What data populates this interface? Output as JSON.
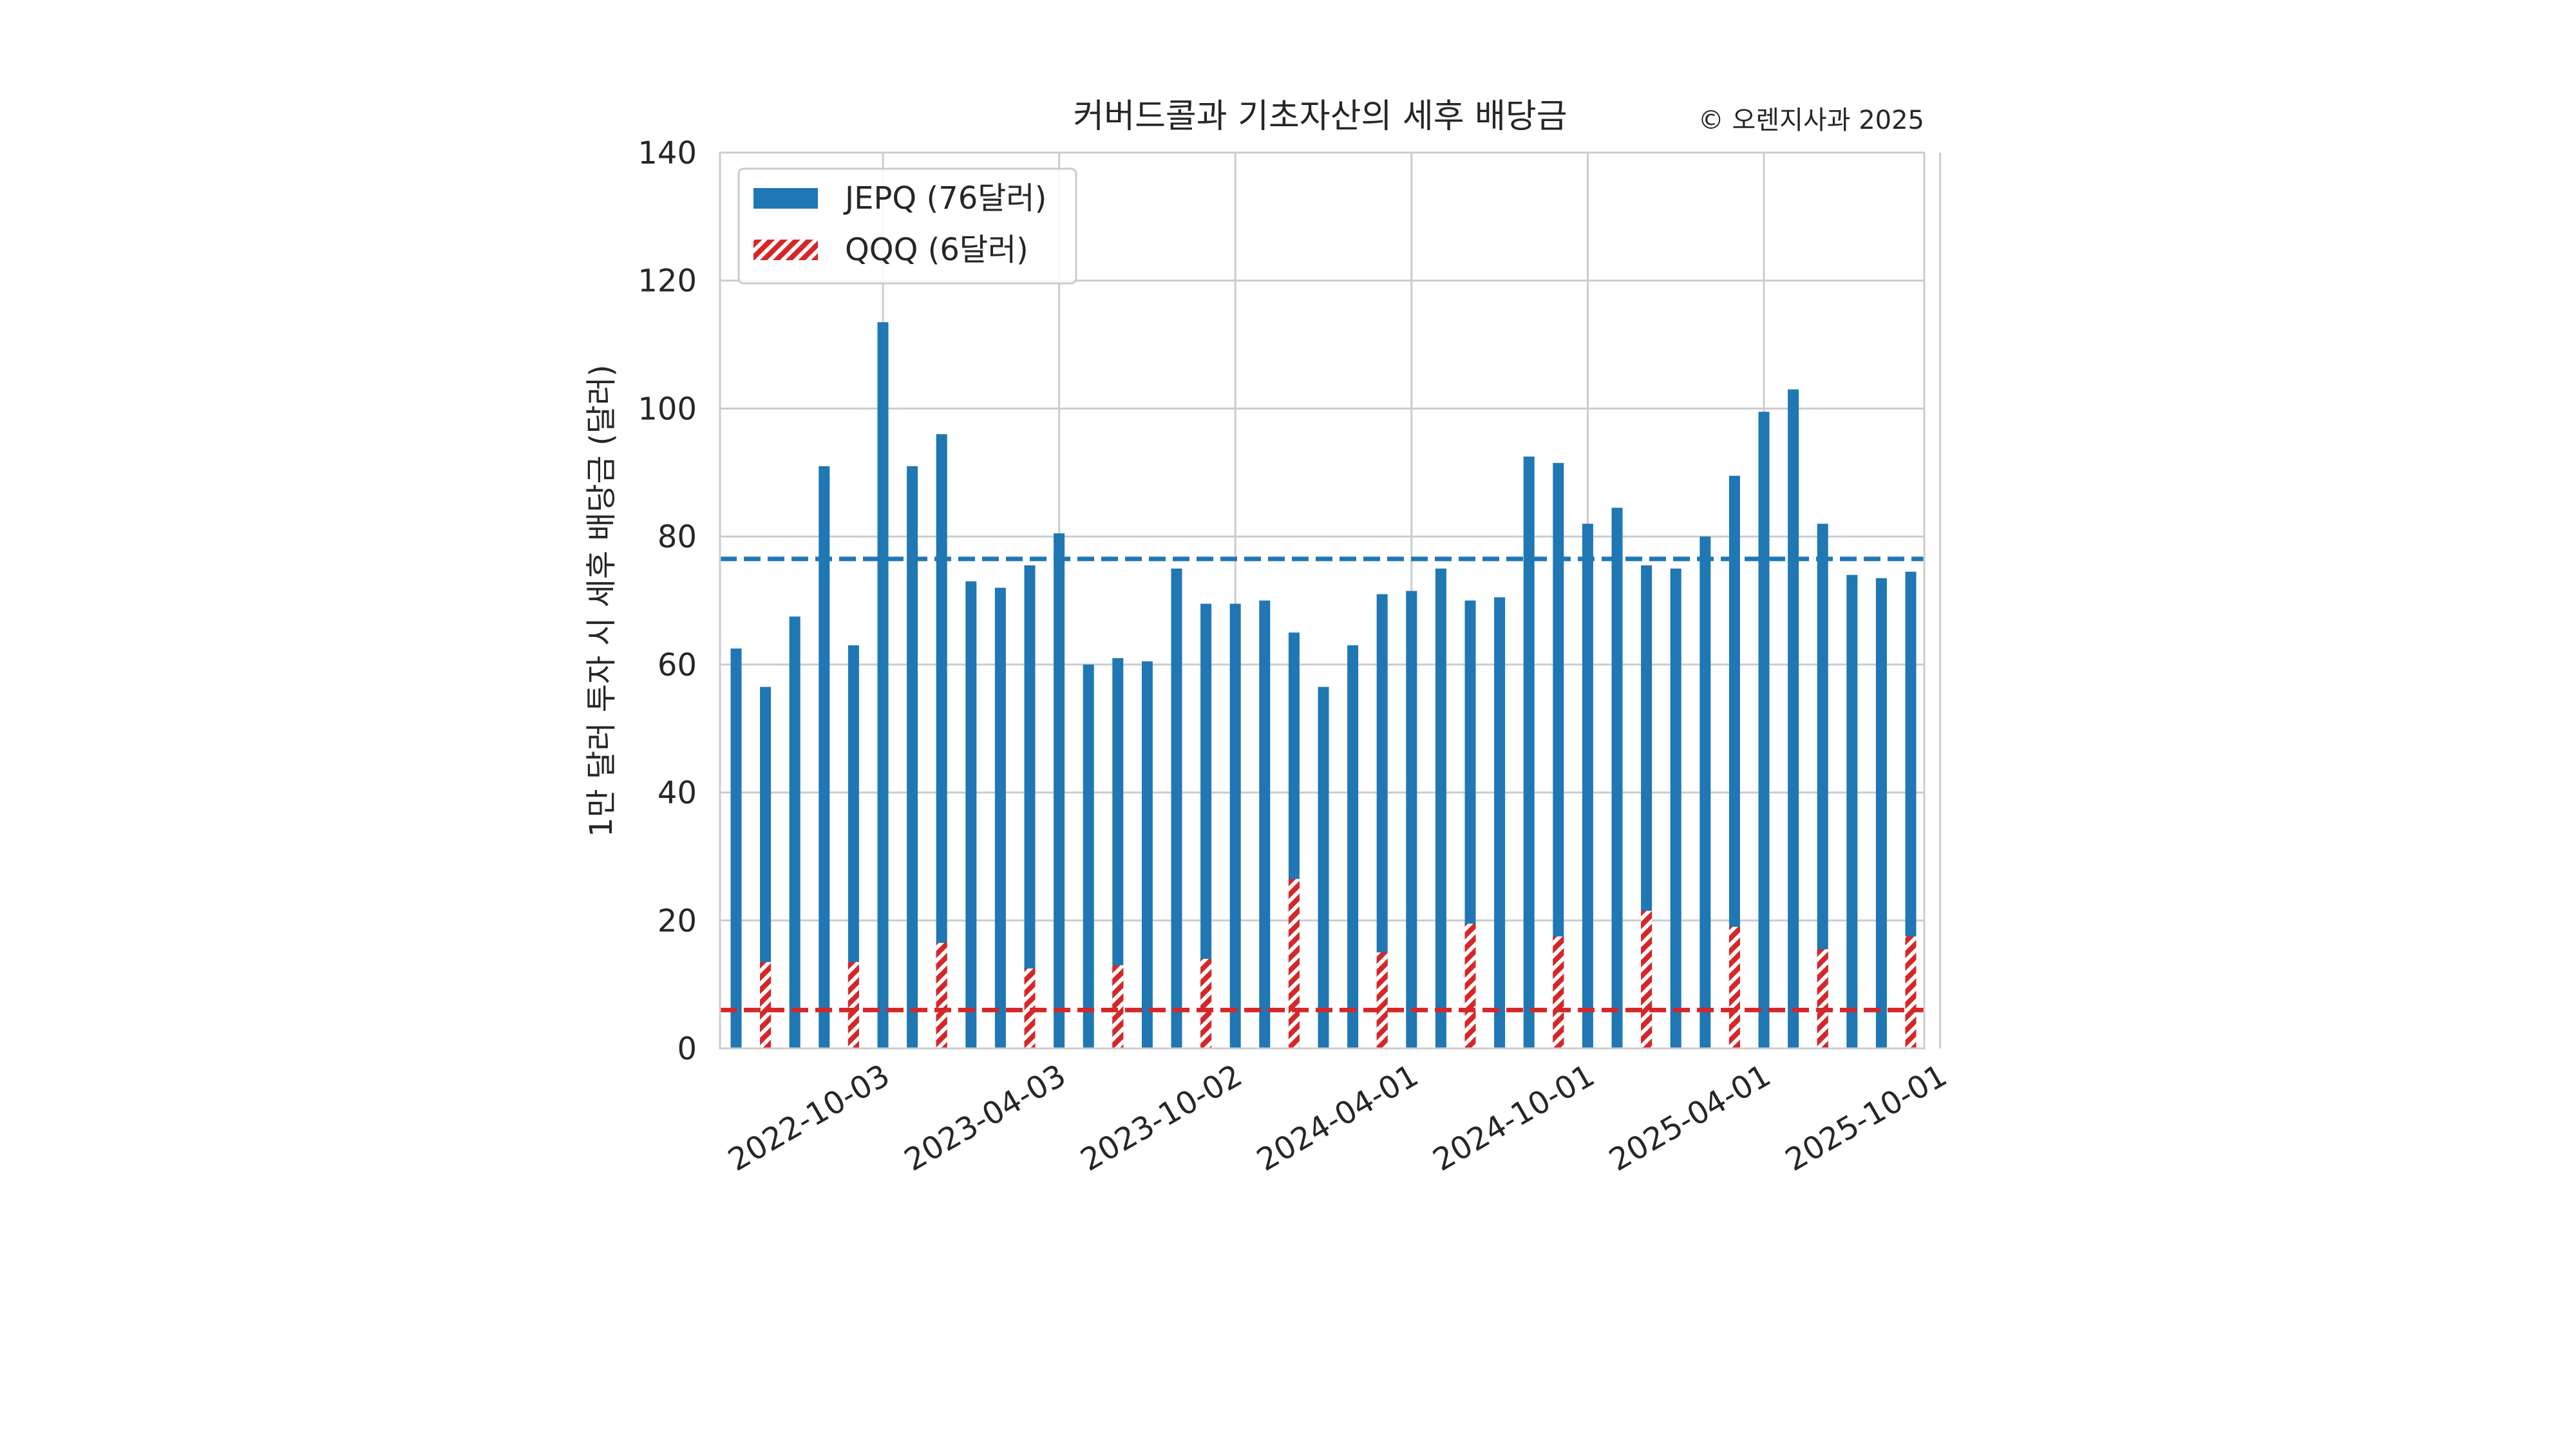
{
  "chart_data": {
    "type": "bar",
    "title": "커버드콜과 기초자산의 세후 배당금",
    "credit": "© 오렌지사과 2025",
    "ylabel": "1만 달러 투자 시 세후 배당금 (달러)",
    "xlabel": "",
    "ylim": [
      0,
      140
    ],
    "y_ticks": [
      0,
      20,
      40,
      60,
      80,
      100,
      120,
      140
    ],
    "grid": true,
    "legend_position": "top-left",
    "x_tick_labels": [
      "2022-10-03",
      "2023-04-03",
      "2023-10-02",
      "2024-04-01",
      "2024-10-01",
      "2025-04-01",
      "2025-10-01"
    ],
    "x_tick_label_indices": [
      5,
      11,
      17,
      23,
      29,
      35,
      41
    ],
    "colors": {
      "jepq": "#1f77b4",
      "qqq": "#d62728"
    },
    "series": [
      {
        "name": "JEPQ (76달러)",
        "style": "solid",
        "values": [
          62.5,
          56.5,
          67.5,
          91,
          63,
          113.5,
          91,
          96,
          73,
          72,
          75.5,
          80.5,
          60,
          61,
          60.5,
          75,
          69.5,
          69.5,
          70,
          65,
          56.5,
          63,
          71,
          71.5,
          75,
          70,
          70.5,
          92.5,
          91.5,
          82,
          84.5,
          75.5,
          75,
          80,
          89.5,
          99.5,
          103,
          82,
          74,
          73.5,
          74.5
        ]
      },
      {
        "name": "QQQ (6달러)",
        "style": "hatched",
        "values": [
          null,
          13.5,
          null,
          null,
          13.5,
          null,
          null,
          16.5,
          null,
          null,
          12.5,
          null,
          null,
          13,
          null,
          null,
          14,
          null,
          null,
          26.5,
          null,
          null,
          15,
          null,
          null,
          19.5,
          null,
          null,
          17.5,
          null,
          null,
          21.5,
          null,
          null,
          19,
          null,
          null,
          15.5,
          null,
          null,
          17.5
        ]
      }
    ],
    "reference_lines": [
      {
        "series": "JEPQ (76달러)",
        "value": 76.5,
        "style": "dashed",
        "color": "#1f77b4"
      },
      {
        "series": "QQQ (6달러)",
        "value": 6,
        "style": "dashed",
        "color": "#d62728"
      }
    ]
  }
}
